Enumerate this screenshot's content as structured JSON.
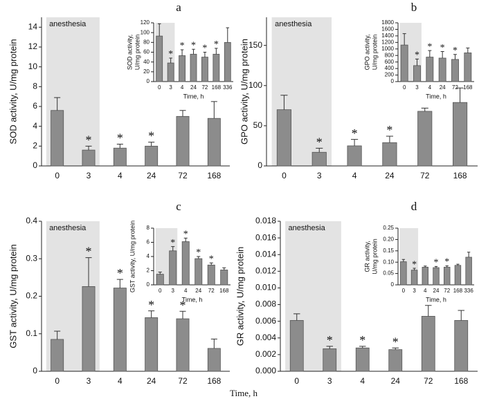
{
  "chart_data": [
    {
      "type": "bar",
      "panel_label": "a",
      "shade_label": "anesthesia",
      "shade_categories": 2,
      "ylabel": "SOD activity, U/mg protein",
      "categories": [
        "0",
        "3",
        "4",
        "24",
        "72",
        "168"
      ],
      "values": [
        5.6,
        1.6,
        1.8,
        2.0,
        5.0,
        4.8
      ],
      "errors": [
        1.3,
        0.4,
        0.4,
        0.4,
        0.6,
        1.7
      ],
      "significant": [
        false,
        true,
        true,
        true,
        false,
        false
      ],
      "significance_mark": "*",
      "color": "#8c8c8c",
      "shade_color": "#e3e3e3",
      "ylim": [
        0,
        15
      ],
      "yticks": [
        0,
        2,
        4,
        6,
        8,
        10,
        12,
        14
      ]
    },
    {
      "type": "bar",
      "shade_categories": 2,
      "ylabel": [
        "SOD activity,",
        "U/mg protein"
      ],
      "xlabel": "Time, h",
      "categories": [
        "0",
        "3",
        "4",
        "24",
        "72",
        "168",
        "336"
      ],
      "values": [
        93,
        38,
        53,
        56,
        50,
        56,
        80
      ],
      "errors": [
        25,
        10,
        12,
        10,
        10,
        12,
        30
      ],
      "significant": [
        false,
        true,
        true,
        true,
        true,
        true,
        false
      ],
      "significance_mark": "*",
      "color": "#8c8c8c",
      "shade_color": "#e3e3e3",
      "ylim": [
        0,
        120
      ],
      "yticks": [
        0,
        20,
        40,
        60,
        80,
        100,
        120
      ]
    },
    {
      "type": "bar",
      "panel_label": "b",
      "shade_label": "anesthesia",
      "shade_categories": 2,
      "ylabel": "GPO activity, U/mg protein",
      "categories": [
        "0",
        "3",
        "4",
        "24",
        "72",
        "168"
      ],
      "values": [
        70,
        17,
        25,
        29,
        68,
        79
      ],
      "errors": [
        18,
        5,
        8,
        8,
        4,
        18
      ],
      "significant": [
        false,
        true,
        true,
        true,
        false,
        false
      ],
      "significance_mark": "*",
      "color": "#8c8c8c",
      "shade_color": "#e3e3e3",
      "ylim": [
        0,
        185
      ],
      "yticks": [
        0,
        50,
        100,
        150
      ]
    },
    {
      "type": "bar",
      "shade_categories": 2,
      "ylabel": [
        "GPO activity,",
        "U/mg protein"
      ],
      "xlabel": "Time, h",
      "categories": [
        "0",
        "3",
        "4",
        "24",
        "72",
        "168"
      ],
      "values": [
        1120,
        490,
        750,
        720,
        680,
        880
      ],
      "errors": [
        350,
        200,
        200,
        200,
        150,
        150
      ],
      "significant": [
        false,
        true,
        true,
        true,
        true,
        false
      ],
      "significance_mark": "*",
      "color": "#8c8c8c",
      "shade_color": "#e3e3e3",
      "ylim": [
        0,
        1800
      ],
      "yticks": [
        0,
        200,
        400,
        600,
        800,
        1000,
        1200,
        1400,
        1600,
        1800
      ]
    },
    {
      "type": "bar",
      "panel_label": "c",
      "shade_label": "anesthesia",
      "shade_categories": 2,
      "ylabel": "GST activity, U/mg protein",
      "categories": [
        "0",
        "3",
        "4",
        "24",
        "72",
        "168"
      ],
      "values": [
        0.085,
        0.226,
        0.222,
        0.143,
        0.14,
        0.061
      ],
      "errors": [
        0.022,
        0.077,
        0.023,
        0.018,
        0.02,
        0.025
      ],
      "significant": [
        false,
        true,
        true,
        true,
        true,
        false
      ],
      "significance_mark": "*",
      "color": "#8c8c8c",
      "shade_color": "#e3e3e3",
      "ylim": [
        0,
        0.4
      ],
      "yticks": [
        0,
        0.1,
        0.2,
        0.3,
        0.4
      ]
    },
    {
      "type": "bar",
      "shade_categories": 2,
      "ylabel": [
        "GST activity, U/mg protein"
      ],
      "xlabel": "Time, h",
      "categories": [
        "0",
        "3",
        "4",
        "24",
        "72",
        "168"
      ],
      "values": [
        1.5,
        4.8,
        6.1,
        3.7,
        2.8,
        2.1
      ],
      "errors": [
        0.3,
        0.6,
        0.5,
        0.3,
        0.3,
        0.3
      ],
      "significant": [
        false,
        true,
        true,
        true,
        true,
        false
      ],
      "significance_mark": "*",
      "color": "#8c8c8c",
      "shade_color": "#e3e3e3",
      "ylim": [
        0,
        8
      ],
      "yticks": [
        0,
        2,
        4,
        6,
        8
      ]
    },
    {
      "type": "bar",
      "panel_label": "d",
      "shade_label": "anesthesia",
      "shade_categories": 2,
      "ylabel": "GR activity, U/mg protein",
      "categories": [
        "0",
        "3",
        "4",
        "24",
        "72",
        "168"
      ],
      "values": [
        0.0061,
        0.0027,
        0.0028,
        0.0026,
        0.0066,
        0.0061
      ],
      "errors": [
        0.0008,
        0.0003,
        0.0002,
        0.0002,
        0.0013,
        0.0012
      ],
      "significant": [
        false,
        true,
        true,
        true,
        false,
        false
      ],
      "significance_mark": "*",
      "color": "#8c8c8c",
      "shade_color": "#e3e3e3",
      "ylim": [
        0,
        0.018
      ],
      "yticks": [
        {
          "value": 0,
          "label": "0.000"
        },
        {
          "value": 0.002,
          "label": "0.002"
        },
        {
          "value": 0.004,
          "label": "0.004"
        },
        {
          "value": 0.006,
          "label": "0.006"
        },
        {
          "value": 0.008,
          "label": "0.008"
        },
        {
          "value": 0.01,
          "label": "0.010"
        },
        {
          "value": 0.012,
          "label": "0.012"
        },
        {
          "value": 0.014,
          "label": "0.014"
        },
        {
          "value": 0.016,
          "label": "0.016"
        },
        {
          "value": 0.018,
          "label": "0.018"
        }
      ]
    },
    {
      "type": "bar",
      "shade_categories": 2,
      "ylabel": [
        "GR activity,",
        "U/mg protein"
      ],
      "xlabel": "Time, h",
      "categories": [
        "0",
        "3",
        "4",
        "24",
        "72",
        "168",
        "336"
      ],
      "values": [
        0.102,
        0.065,
        0.078,
        0.076,
        0.078,
        0.086,
        0.122
      ],
      "errors": [
        0.01,
        0.008,
        0.005,
        0.005,
        0.006,
        0.005,
        0.022
      ],
      "significant": [
        false,
        true,
        false,
        true,
        true,
        false,
        false
      ],
      "significance_mark": "*",
      "color": "#8c8c8c",
      "shade_color": "#e3e3e3",
      "ylim": [
        0,
        0.25
      ],
      "yticks": [
        0,
        0.05,
        {
          "value": 0.1,
          "label": "0.10"
        },
        0.15,
        {
          "value": 0.2,
          "label": "0.20"
        },
        0.25
      ]
    }
  ],
  "xlabel": "Time, h"
}
